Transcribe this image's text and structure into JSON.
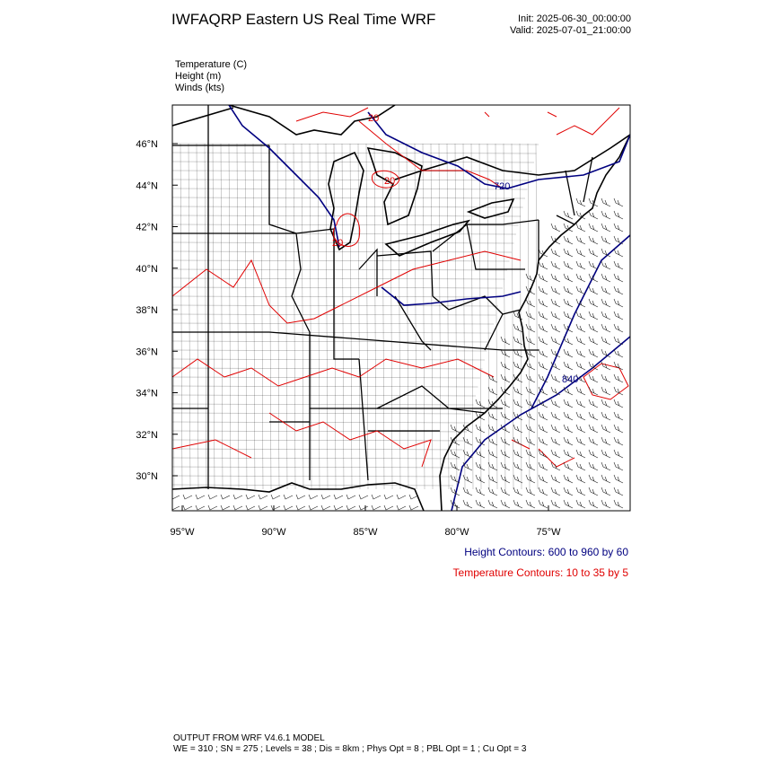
{
  "header": {
    "title": "IWFAQRP Eastern US Real Time WRF",
    "init": "Init: 2025-06-30_00:00:00",
    "valid": "Valid: 2025-07-01_21:00:00"
  },
  "fields": [
    "Temperature   (C)",
    "Height   (m)",
    "Winds   (kts)"
  ],
  "map": {
    "lat_labels": [
      "46°N",
      "44°N",
      "42°N",
      "40°N",
      "38°N",
      "36°N",
      "34°N",
      "32°N",
      "30°N"
    ],
    "lon_labels": [
      "95°W",
      "90°W",
      "85°W",
      "80°W",
      "75°W"
    ],
    "contour_labels": [
      "20",
      "20",
      "20",
      "720",
      "840"
    ]
  },
  "legend": {
    "height": "Height Contours: 600 to 960 by 60",
    "temperature": "Temperature Contours: 10 to 35 by 5"
  },
  "footer": {
    "model": "OUTPUT FROM WRF V4.6.1 MODEL",
    "settings": "WE = 310 ; SN = 275 ; Levels = 38 ; Dis = 8km ; Phys Opt = 8 ; PBL Opt = 1 ; Cu Opt = 3"
  }
}
